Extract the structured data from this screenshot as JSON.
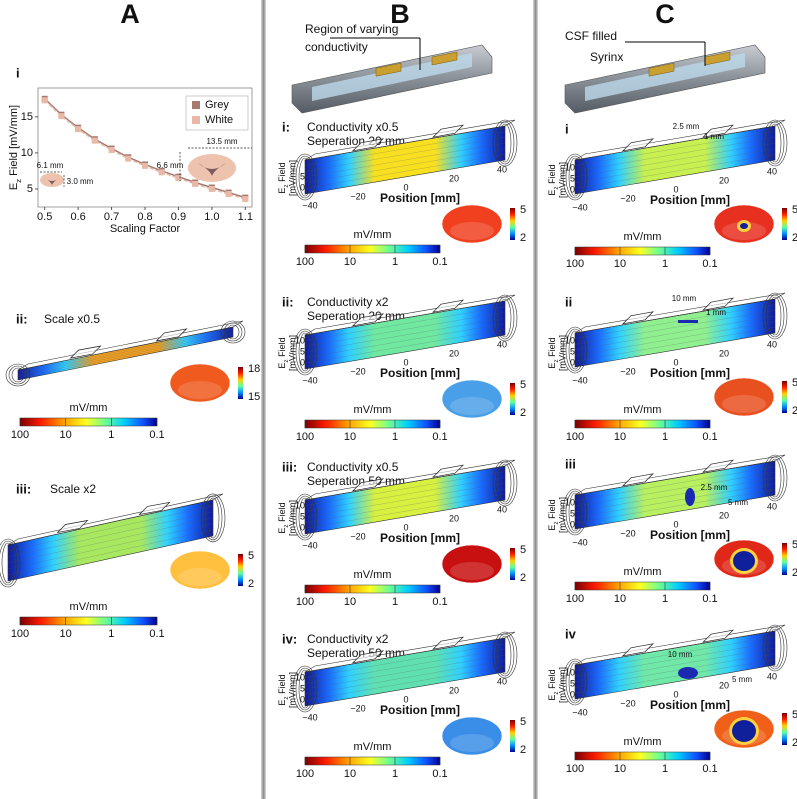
{
  "panel_a": {
    "heading": "A",
    "chart": {
      "label": "i",
      "type": "line",
      "xlabel": "Scaling Factor",
      "ylabel": [
        "E",
        "z",
        " Field [mV/mm]"
      ],
      "x": [
        0.5,
        0.55,
        0.6,
        0.65,
        0.7,
        0.75,
        0.8,
        0.85,
        0.9,
        0.95,
        1.0,
        1.05,
        1.1
      ],
      "series": [
        {
          "name": "Grey",
          "color": "#a57a70",
          "values": [
            17.5,
            15.3,
            13.5,
            11.9,
            10.6,
            9.4,
            8.4,
            7.5,
            6.7,
            5.9,
            5.2,
            4.5,
            3.8
          ]
        },
        {
          "name": "White",
          "color": "#e9b9a8",
          "values": [
            17.3,
            15.1,
            13.3,
            11.7,
            10.4,
            9.2,
            8.2,
            7.3,
            6.5,
            5.7,
            5.0,
            4.3,
            3.6
          ]
        }
      ],
      "xlim": [
        0.48,
        1.12
      ],
      "ylim": [
        2.5,
        19
      ],
      "xticks": [
        0.5,
        0.6,
        0.7,
        0.8,
        0.9,
        {
          "value": 1.0,
          "label": "1.0"
        },
        1.1
      ],
      "yticks": [
        5,
        10,
        15
      ],
      "legend": "upper right",
      "annotations": [
        "13.5 mm",
        "6.6 mm",
        "6.1 mm",
        "3.0 mm"
      ]
    },
    "panels": [
      {
        "label": "ii:",
        "title": [
          "Scale x0.5"
        ],
        "scale": [
          "18",
          "15"
        ],
        "section_color": "#f05a1e",
        "colorbar": {
          "unit": "mV/mm",
          "ticks": [
            "100",
            "10",
            "1",
            "0.1"
          ]
        }
      },
      {
        "label": "iii:",
        "title": [
          "Scale x2"
        ],
        "scale": [
          "5",
          "2"
        ],
        "section_color": "#ffc040",
        "colorbar": {
          "unit": "mV/mm",
          "ticks": [
            "100",
            "10",
            "1",
            "0.1"
          ]
        }
      }
    ]
  },
  "panel_b": {
    "heading": "B",
    "caption": [
      "Region of varying",
      "conductivity"
    ],
    "panels": [
      {
        "label": "i:",
        "title": [
          "Conductivity x0.5",
          "Seperation 20 mm"
        ],
        "scale": [
          "5",
          "2"
        ],
        "section_color": "#f04020",
        "axes": {
          "ylabel": [
            "E",
            "z",
            " Field"
          ],
          "yunit": "[mV/mm]",
          "yticks": [
            "0",
            "5"
          ],
          "xlabel": "Position [mm]",
          "xticks": [
            "−40",
            "−20",
            "0",
            "20",
            "40"
          ]
        },
        "colorbar": {
          "unit": "mV/mm",
          "ticks": [
            "100",
            "10",
            "1",
            "0.1"
          ]
        }
      },
      {
        "label": "ii:",
        "title": [
          "Conductivity x2",
          "Seperation 20 mm"
        ],
        "scale": [
          "5",
          "2"
        ],
        "section_color": "#4aa0e8",
        "axes": {
          "ylabel": [
            "E",
            "z",
            " Field"
          ],
          "yunit": "[mV/mm]",
          "yticks": [
            "0",
            "5",
            "10"
          ],
          "xlabel": "Position [mm]",
          "xticks": [
            "−40",
            "−20",
            "0",
            "20",
            "40"
          ]
        },
        "colorbar": {
          "unit": "mV/mm",
          "ticks": [
            "100",
            "10",
            "1",
            "0.1"
          ]
        }
      },
      {
        "label": "iii:",
        "title": [
          "Conductivity x0.5",
          "Seperation 50 mm"
        ],
        "scale": [
          "5",
          "2"
        ],
        "section_color": "#c81010",
        "axes": {
          "ylabel": [
            "E",
            "z",
            " Field"
          ],
          "yunit": "[mV/mm]",
          "yticks": [
            "0",
            "5",
            "10"
          ],
          "xlabel": "Position [mm]",
          "xticks": [
            "−40",
            "−20",
            "0",
            "20",
            "40"
          ]
        },
        "colorbar": {
          "unit": "mV/mm",
          "ticks": [
            "100",
            "10",
            "1",
            "0.1"
          ]
        }
      },
      {
        "label": "iv:",
        "title": [
          "Conductivity x2",
          "Seperation 50 mm"
        ],
        "scale": [
          "5",
          "2"
        ],
        "section_color": "#3a8ee8",
        "axes": {
          "ylabel": [
            "E",
            "z",
            " Field"
          ],
          "yunit": "[mV/mm]",
          "yticks": [
            "0",
            "5",
            "10"
          ],
          "xlabel": "Position [mm]",
          "xticks": [
            "−40",
            "−20",
            "0",
            "20",
            "40"
          ]
        },
        "colorbar": {
          "unit": "mV/mm",
          "ticks": [
            "100",
            "10",
            "1",
            "0.1"
          ]
        }
      }
    ]
  },
  "panel_c": {
    "heading": "C",
    "caption": [
      "CSF filled",
      "Syrinx"
    ],
    "panels": [
      {
        "label": "i",
        "dims": [
          "2.5 mm",
          "1 mm"
        ],
        "scale": [
          "5",
          "2"
        ],
        "section_color": "#e83020",
        "axes": {
          "ylabel": [
            "E",
            "z",
            " Field"
          ],
          "yunit": "[mV/mm]",
          "yticks": [
            "0",
            "5",
            "10"
          ],
          "xlabel": "Position [mm]",
          "xticks": [
            "−40",
            "−20",
            "0",
            "20",
            "40"
          ]
        },
        "colorbar": {
          "unit": "mV/mm",
          "ticks": [
            "100",
            "10",
            "1",
            "0.1"
          ]
        }
      },
      {
        "label": "ii",
        "dims": [
          "10 mm",
          "1 mm"
        ],
        "scale": [
          "5",
          "2"
        ],
        "section_color": "#e85020",
        "axes": {
          "ylabel": [
            "E",
            "z",
            " Field"
          ],
          "yunit": "[mV/mm]",
          "yticks": [
            "0",
            "5",
            "10"
          ],
          "xlabel": "Position [mm]",
          "xticks": [
            "−40",
            "−20",
            "0",
            "20",
            "40"
          ]
        },
        "colorbar": {
          "unit": "mV/mm",
          "ticks": [
            "100",
            "10",
            "1",
            "0.1"
          ]
        }
      },
      {
        "label": "iii",
        "dims": [
          "2.5 mm",
          "5 mm"
        ],
        "scale": [
          "5",
          "2"
        ],
        "section_color": "#e02818",
        "axes": {
          "ylabel": [
            "E",
            "z",
            " Field"
          ],
          "yunit": "[mV/mm]",
          "yticks": [
            "0",
            "5",
            "10"
          ],
          "xlabel": "Position [mm]",
          "xticks": [
            "−40",
            "−20",
            "0",
            "20",
            "40"
          ]
        },
        "colorbar": {
          "unit": "mV/mm",
          "ticks": [
            "100",
            "10",
            "1",
            "0.1"
          ]
        }
      },
      {
        "label": "iv",
        "dims": [
          "10 mm",
          "5 mm"
        ],
        "scale": [
          "5",
          "2"
        ],
        "section_color": "#f06018",
        "axes": {
          "ylabel": [
            "E",
            "z",
            " Field"
          ],
          "yunit": "[mV/mm]",
          "yticks": [
            "0",
            "5",
            "10"
          ],
          "xlabel": "Position [mm]",
          "xticks": [
            "−40",
            "−20",
            "0",
            "20",
            "40"
          ]
        },
        "colorbar": {
          "unit": "mV/mm",
          "ticks": [
            "100",
            "10",
            "1",
            "0.1"
          ]
        }
      }
    ]
  }
}
